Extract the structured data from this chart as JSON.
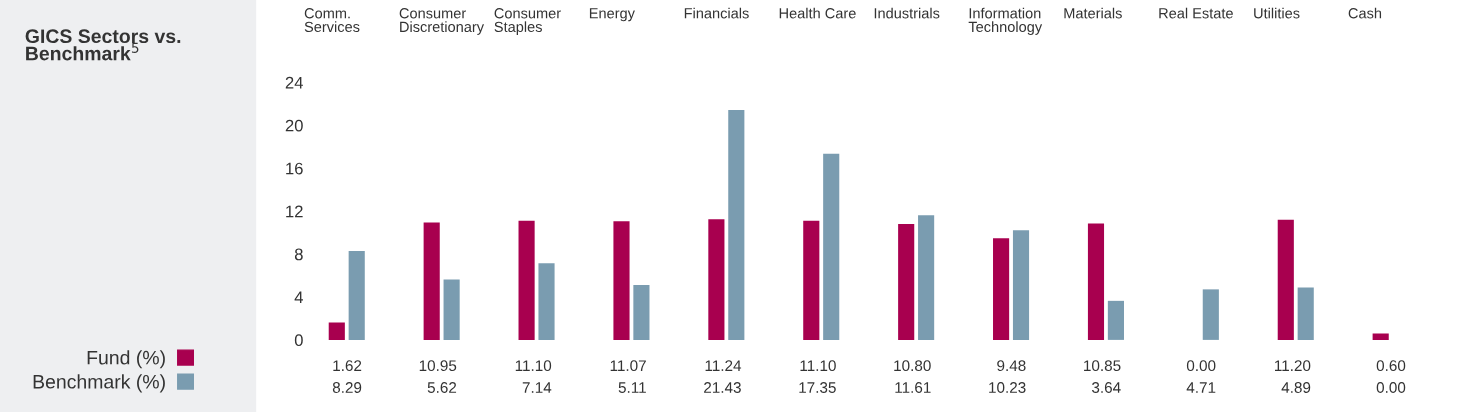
{
  "chart_data": {
    "type": "bar",
    "title": "GICS Sectors vs.\nBenchmark$^{5}$",
    "categories": [
      "Comm.\nServices",
      "Consumer\nDiscretionary",
      "Consumer\nStaples",
      "Energy",
      "Financials",
      "Health Care",
      "Industrials",
      "Information\nTechnology",
      "Materials",
      "Real Estate",
      "Utilities",
      "Cash"
    ],
    "series": [
      {
        "name": "Fund (%)",
        "color": "#a8004f",
        "values": [
          1.62,
          10.95,
          11.1,
          11.07,
          11.24,
          11.1,
          10.8,
          9.48,
          10.85,
          0.0,
          11.2,
          0.6
        ],
        "value_labels": [
          "1.62",
          "10.95",
          "11.10",
          "11.07",
          "11.24",
          "11.10",
          "10.80",
          "9.48",
          "10.85",
          "0.00",
          "11.20",
          "0.60"
        ]
      },
      {
        "name": "Benchmark (%)",
        "color": "#7a9cb0",
        "values": [
          8.29,
          5.62,
          7.14,
          5.11,
          21.43,
          17.35,
          11.61,
          10.23,
          3.64,
          4.71,
          4.89,
          0.0
        ],
        "value_labels": [
          "8.29",
          "5.62",
          "7.14",
          "5.11",
          "21.43",
          "17.35",
          "11.61",
          "10.23",
          "3.64",
          "4.71",
          "4.89",
          "0.00"
        ]
      }
    ],
    "ylim": [
      0,
      24
    ],
    "yticks": [
      0,
      4,
      8,
      12,
      16,
      20,
      24
    ],
    "grid": false,
    "legend": "bottom left"
  }
}
